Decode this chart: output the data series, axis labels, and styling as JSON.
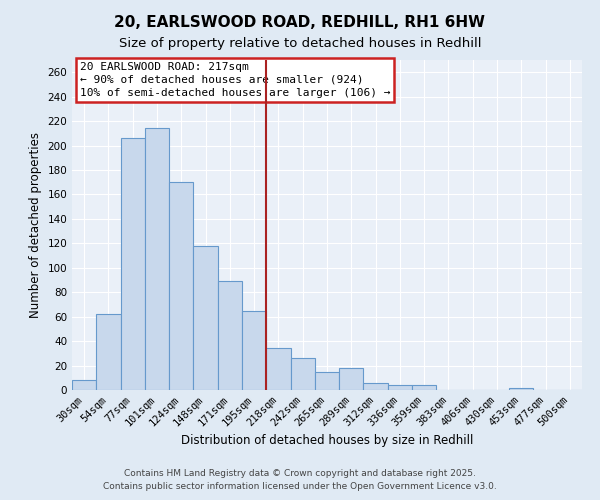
{
  "title1": "20, EARLSWOOD ROAD, REDHILL, RH1 6HW",
  "title2": "Size of property relative to detached houses in Redhill",
  "xlabel": "Distribution of detached houses by size in Redhill",
  "ylabel": "Number of detached properties",
  "bar_labels": [
    "30sqm",
    "54sqm",
    "77sqm",
    "101sqm",
    "124sqm",
    "148sqm",
    "171sqm",
    "195sqm",
    "218sqm",
    "242sqm",
    "265sqm",
    "289sqm",
    "312sqm",
    "336sqm",
    "359sqm",
    "383sqm",
    "406sqm",
    "430sqm",
    "453sqm",
    "477sqm",
    "500sqm"
  ],
  "bar_heights": [
    8,
    62,
    206,
    214,
    170,
    118,
    89,
    65,
    34,
    26,
    15,
    18,
    6,
    4,
    4,
    0,
    0,
    0,
    2,
    0,
    0
  ],
  "bar_color": "#c8d8ec",
  "bar_edge_color": "#6699cc",
  "bar_edge_width": 0.8,
  "vline_x_idx": 8,
  "vline_color": "#aa2222",
  "annotation_title": "20 EARLSWOOD ROAD: 217sqm",
  "annotation_line1": "← 90% of detached houses are smaller (924)",
  "annotation_line2": "10% of semi-detached houses are larger (106) →",
  "annotation_box_edgecolor": "#cc2222",
  "ylim": [
    0,
    270
  ],
  "yticks": [
    0,
    20,
    40,
    60,
    80,
    100,
    120,
    140,
    160,
    180,
    200,
    220,
    240,
    260
  ],
  "footer1": "Contains HM Land Registry data © Crown copyright and database right 2025.",
  "footer2": "Contains public sector information licensed under the Open Government Licence v3.0.",
  "background_color": "#e0eaf4",
  "plot_bg_color": "#eaf0f8",
  "grid_color": "#ffffff",
  "title_fontsize": 11,
  "subtitle_fontsize": 9.5,
  "axis_label_fontsize": 8.5,
  "tick_fontsize": 7.5,
  "annotation_fontsize": 8,
  "footer_fontsize": 6.5
}
